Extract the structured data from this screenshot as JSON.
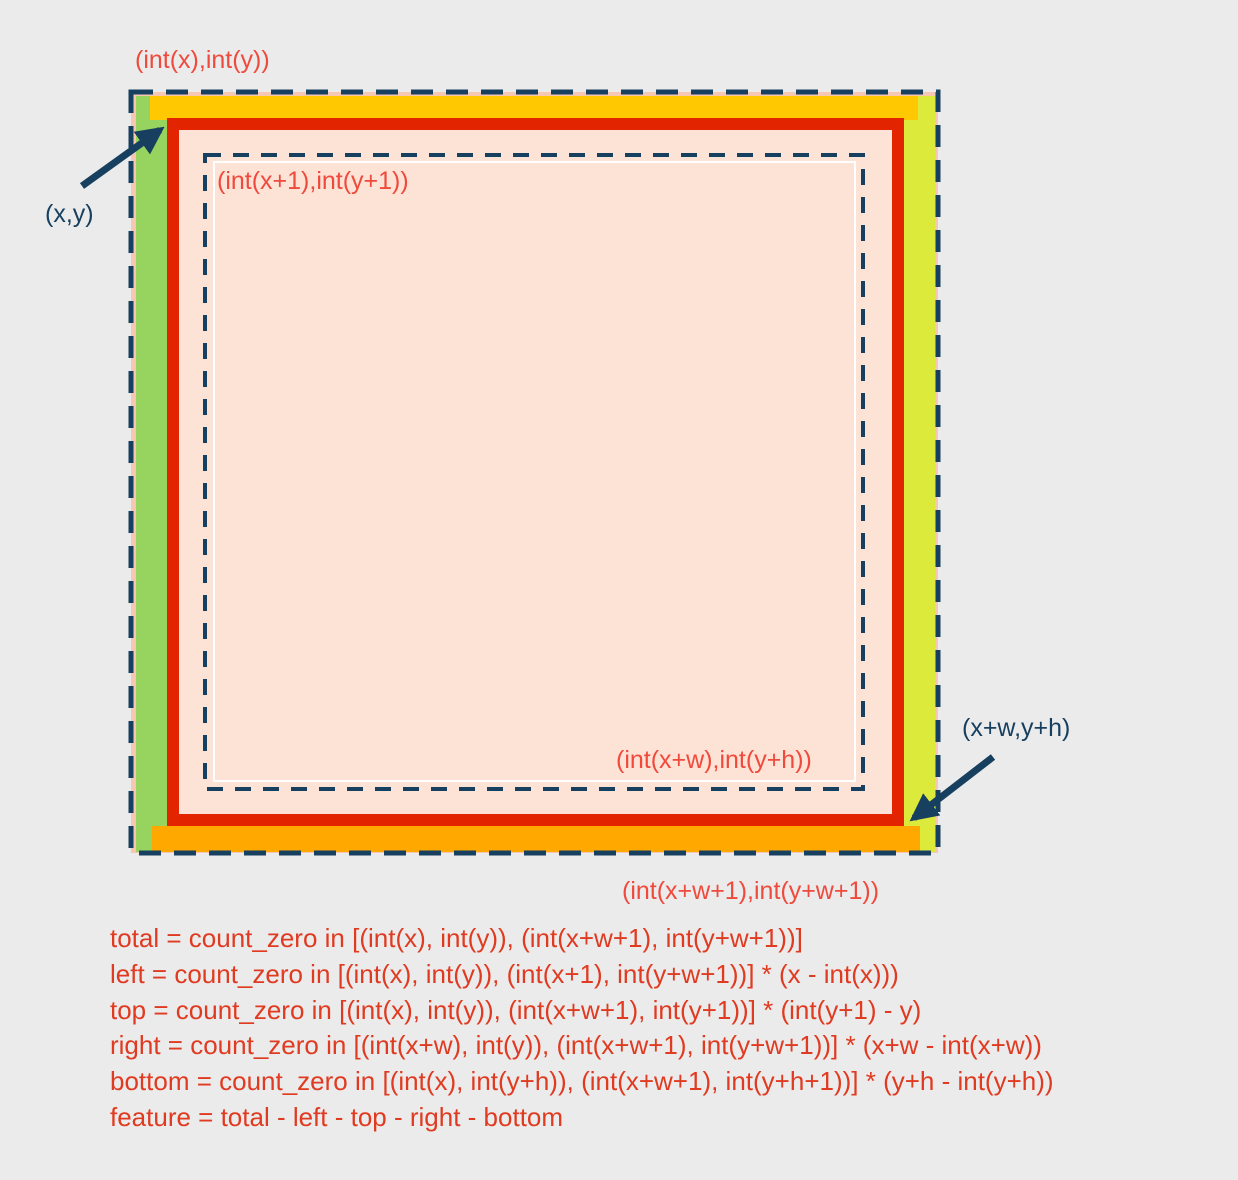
{
  "labels": {
    "outer_int_corner": "(int(x),int(y))",
    "xy": "(x,y)",
    "inner_int_corner": "(int(x+1),int(y+1))",
    "xwyh": "(x+w,y+h)",
    "inner_br_int": "(int(x+w),int(y+h))",
    "outer_br_int": "(int(x+w+1),int(y+w+1))"
  },
  "formulas": [
    "total = count_zero in [(int(x), int(y)), (int(x+w+1), int(y+w+1))]",
    "left = count_zero in [(int(x), int(y)), (int(x+1), int(y+w+1))] * (x - int(x)))",
    "top = count_zero in [(int(x), int(y)), (int(x+w+1), int(y+1))] * (int(y+1) - y)",
    "right = count_zero in [(int(x+w), int(y)), (int(x+w+1), int(y+w+1))] * (x+w - int(x+w))",
    "bottom = count_zero in [(int(x), int(y+h)), (int(x+w+1), int(y+h+1))] * (y+h - int(y+h))",
    "feature = total - left - top - right - bottom"
  ],
  "colors": {
    "background": "#ebebeb",
    "fill": "#fde2d6",
    "left_strip": "#96d35f",
    "right_strip": "#dcea3b",
    "top_strip": "#ffc800",
    "bottom_strip": "#ffa800",
    "red_box": "#e22400",
    "dashed": "#173f5f",
    "label_red": "#ef4a3c",
    "formula_red": "#e03a20"
  }
}
